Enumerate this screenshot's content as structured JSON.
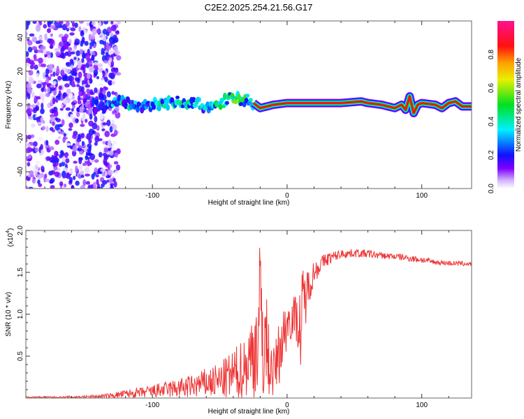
{
  "chart_data": [
    {
      "type": "heatmap",
      "title": "C2E2.2025.254.21.56.G17",
      "xlabel": "Height of straight line (km)",
      "ylabel": "Frequency (Hz)",
      "xlim": [
        -194,
        137
      ],
      "ylim": [
        -50,
        50
      ],
      "xticks": [
        -100,
        0,
        100
      ],
      "yticks": [
        40,
        20,
        0,
        -20,
        -40
      ],
      "colorbar": {
        "label": "Normalized spectral amplitude",
        "ticks": [
          "0.0",
          "0.2",
          "0.4",
          "0.6",
          "0.8"
        ],
        "range": [
          0,
          1
        ]
      },
      "noise_region_km": [
        -194,
        -125
      ],
      "ridge": {
        "height_km": [
          -150,
          -140,
          -130,
          -120,
          -110,
          -100,
          -90,
          -80,
          -70,
          -60,
          -50,
          -40,
          -30,
          -25,
          -20,
          -10,
          0,
          20,
          40,
          55,
          60,
          70,
          80,
          85,
          88,
          91,
          94,
          97,
          100,
          110,
          115,
          120,
          125,
          130,
          137
        ],
        "freq_hz": [
          0,
          -1,
          0,
          2,
          -1,
          0,
          1,
          2,
          1,
          -1,
          1,
          4,
          3,
          1,
          -2,
          0,
          1,
          1,
          1,
          2,
          1,
          0,
          -2,
          0,
          -3,
          5,
          -5,
          0,
          1,
          0,
          -2,
          1,
          2,
          -1,
          -1
        ],
        "amplitude": [
          0.15,
          0.2,
          0.3,
          0.35,
          0.3,
          0.35,
          0.35,
          0.4,
          0.4,
          0.35,
          0.4,
          0.45,
          0.45,
          0.5,
          0.8,
          0.9,
          0.92,
          0.92,
          0.92,
          0.92,
          0.92,
          0.92,
          0.92,
          0.92,
          0.92,
          0.92,
          0.92,
          0.92,
          0.92,
          0.92,
          0.92,
          0.92,
          0.92,
          0.92,
          0.92
        ]
      }
    },
    {
      "type": "line",
      "title": "",
      "xlabel": "Height of straight line (km)",
      "ylabel": "SNR (10 * v/v)",
      "yscale_label": "(x10",
      "yscale_exp": "4",
      "xlim": [
        -194,
        137
      ],
      "ylim": [
        0,
        2.0
      ],
      "xticks": [
        -100,
        0,
        100
      ],
      "yticks": [
        "0.5",
        "1.0",
        "1.5",
        "2.0"
      ],
      "color": "#ee3333",
      "height_km": [
        -194,
        -170,
        -150,
        -140,
        -130,
        -120,
        -110,
        -100,
        -90,
        -80,
        -70,
        -60,
        -50,
        -40,
        -35,
        -30,
        -25,
        -22,
        -20,
        -18,
        -15,
        -12,
        -10,
        -5,
        0,
        5,
        8,
        10,
        12,
        15,
        20,
        25,
        30,
        40,
        50,
        60,
        70,
        80,
        90,
        100,
        110,
        120,
        137
      ],
      "snr": [
        0.01,
        0.01,
        0.015,
        0.02,
        0.03,
        0.05,
        0.06,
        0.08,
        0.1,
        0.12,
        0.14,
        0.18,
        0.2,
        0.28,
        0.32,
        0.4,
        0.55,
        0.7,
        0.9,
        0.8,
        0.6,
        0.35,
        0.3,
        0.6,
        0.9,
        1.0,
        0.9,
        0.8,
        1.1,
        1.3,
        1.5,
        1.6,
        1.66,
        1.72,
        1.73,
        1.72,
        1.7,
        1.69,
        1.67,
        1.65,
        1.62,
        1.61,
        1.6
      ],
      "spread": [
        0.01,
        0.01,
        0.015,
        0.02,
        0.03,
        0.05,
        0.06,
        0.08,
        0.1,
        0.12,
        0.14,
        0.18,
        0.22,
        0.3,
        0.35,
        0.4,
        0.55,
        0.7,
        1.1,
        0.9,
        0.6,
        0.35,
        0.3,
        0.4,
        0.3,
        0.25,
        0.3,
        0.6,
        0.5,
        0.25,
        0.15,
        0.1,
        0.08,
        0.05,
        0.05,
        0.05,
        0.04,
        0.04,
        0.04,
        0.04,
        0.03,
        0.03,
        0.03
      ]
    }
  ]
}
